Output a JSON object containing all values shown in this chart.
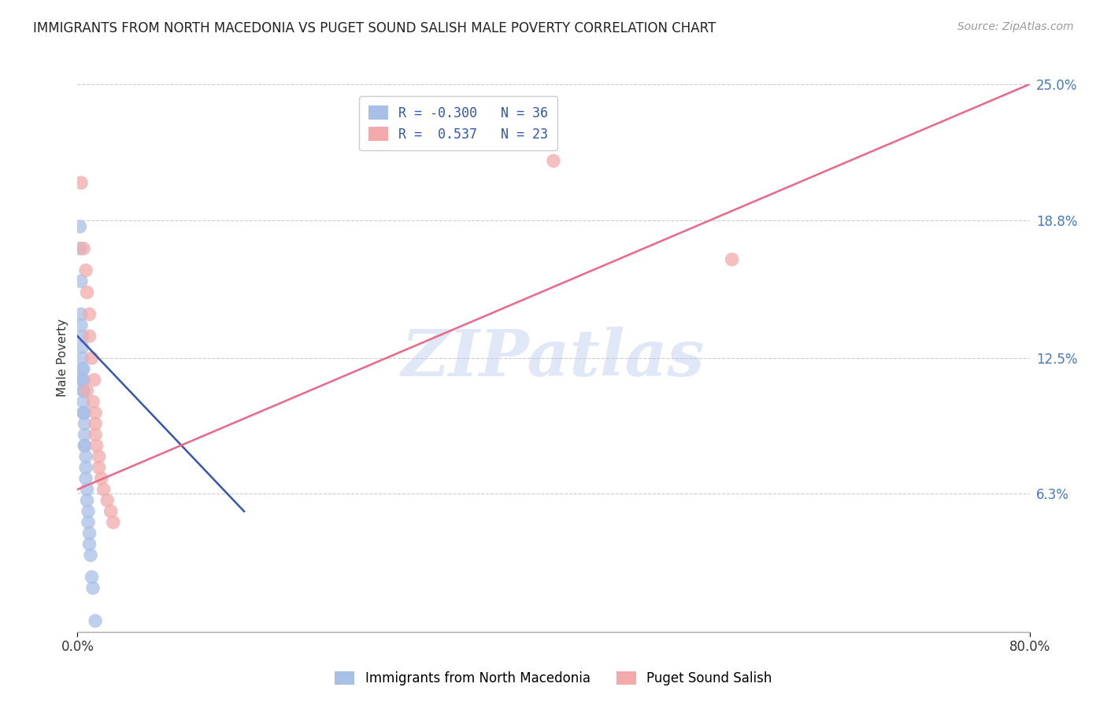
{
  "title": "IMMIGRANTS FROM NORTH MACEDONIA VS PUGET SOUND SALISH MALE POVERTY CORRELATION CHART",
  "source": "Source: ZipAtlas.com",
  "ylabel": "Male Poverty",
  "x_min": 0.0,
  "x_max": 0.8,
  "y_min": 0.0,
  "y_max": 0.25,
  "y_ticks": [
    0.0,
    0.063,
    0.125,
    0.188,
    0.25
  ],
  "y_tick_labels": [
    "",
    "6.3%",
    "12.5%",
    "18.8%",
    "25.0%"
  ],
  "x_ticks": [
    0.0,
    0.8
  ],
  "x_tick_labels": [
    "0.0%",
    "80.0%"
  ],
  "legend_labels": [
    "Immigrants from North Macedonia",
    "Puget Sound Salish"
  ],
  "legend_R": [
    "-0.300",
    "0.537"
  ],
  "legend_N": [
    "36",
    "23"
  ],
  "blue_color": "#A8C0E8",
  "pink_color": "#F4AAAA",
  "blue_line_color": "#3355BB",
  "pink_line_color": "#EE6688",
  "blue_scatter_x": [
    0.002,
    0.002,
    0.003,
    0.003,
    0.003,
    0.004,
    0.004,
    0.004,
    0.004,
    0.005,
    0.005,
    0.005,
    0.005,
    0.005,
    0.005,
    0.005,
    0.005,
    0.006,
    0.006,
    0.006,
    0.006,
    0.006,
    0.007,
    0.007,
    0.007,
    0.008,
    0.008,
    0.009,
    0.009,
    0.01,
    0.01,
    0.011,
    0.012,
    0.013,
    0.015,
    0.003
  ],
  "blue_scatter_y": [
    0.185,
    0.175,
    0.16,
    0.145,
    0.14,
    0.135,
    0.13,
    0.125,
    0.12,
    0.12,
    0.115,
    0.115,
    0.11,
    0.11,
    0.105,
    0.1,
    0.1,
    0.1,
    0.095,
    0.09,
    0.085,
    0.085,
    0.08,
    0.075,
    0.07,
    0.065,
    0.06,
    0.055,
    0.05,
    0.045,
    0.04,
    0.035,
    0.025,
    0.02,
    0.005,
    0.115
  ],
  "pink_scatter_x": [
    0.003,
    0.005,
    0.007,
    0.008,
    0.008,
    0.01,
    0.01,
    0.012,
    0.013,
    0.014,
    0.015,
    0.015,
    0.015,
    0.016,
    0.018,
    0.018,
    0.02,
    0.022,
    0.025,
    0.028,
    0.03,
    0.4,
    0.55
  ],
  "pink_scatter_y": [
    0.205,
    0.175,
    0.165,
    0.155,
    0.11,
    0.145,
    0.135,
    0.125,
    0.105,
    0.115,
    0.1,
    0.095,
    0.09,
    0.085,
    0.075,
    0.08,
    0.07,
    0.065,
    0.06,
    0.055,
    0.05,
    0.215,
    0.17
  ],
  "blue_trend_x": [
    0.0,
    0.14
  ],
  "blue_trend_y": [
    0.135,
    0.055
  ],
  "pink_trend_x": [
    0.0,
    0.8
  ],
  "pink_trend_y": [
    0.065,
    0.25
  ],
  "watermark_text": "ZIPatlas",
  "background_color": "#FFFFFF",
  "grid_color": "#CCCCCC",
  "title_fontsize": 12,
  "source_fontsize": 10,
  "tick_fontsize": 12,
  "ylabel_fontsize": 11,
  "legend_fontsize": 12,
  "watermark_fontsize": 60,
  "scatter_size": 160,
  "scatter_alpha": 0.75
}
